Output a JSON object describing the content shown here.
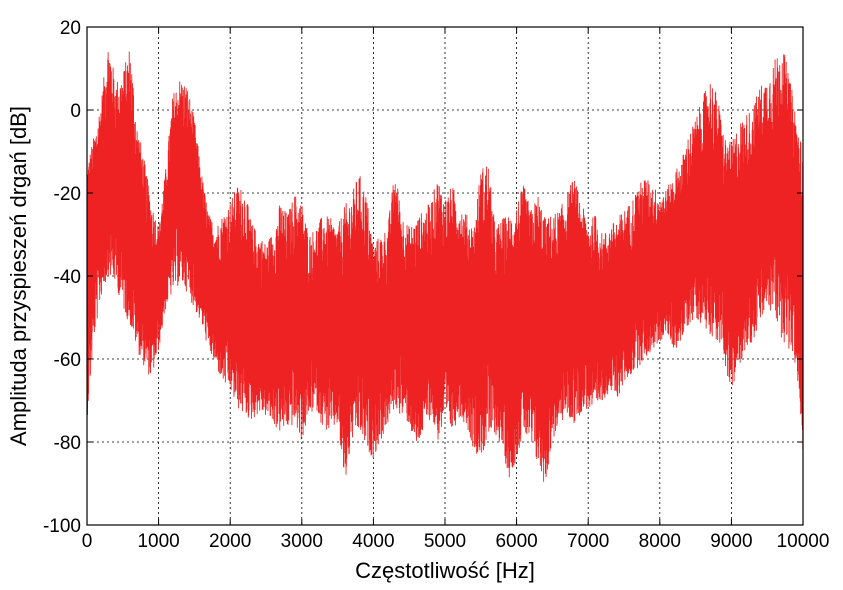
{
  "chart_data": {
    "type": "line",
    "title": "",
    "xlabel": "Częstotliwość [Hz]",
    "ylabel": "Amplituda przyspieszeń drgań [dB]",
    "xlim": [
      0,
      10000
    ],
    "ylim": [
      -100,
      20
    ],
    "xticks": [
      0,
      1000,
      2000,
      3000,
      4000,
      5000,
      6000,
      7000,
      8000,
      9000,
      10000
    ],
    "yticks": [
      -100,
      -80,
      -60,
      -40,
      -20,
      0,
      20
    ],
    "xtick_labels": [
      "0",
      "1000",
      "2000",
      "3000",
      "4000",
      "5000",
      "6000",
      "7000",
      "8000",
      "9000",
      "10000"
    ],
    "ytick_labels": [
      "-100",
      "-80",
      "-60",
      "-40",
      "-20",
      "0",
      "20"
    ],
    "grid": true,
    "series": [
      {
        "color": "#ee2222",
        "envelope_x": [
          0,
          100,
          200,
          300,
          400,
          500,
          600,
          700,
          800,
          900,
          1000,
          1100,
          1200,
          1300,
          1400,
          1500,
          1600,
          1700,
          1800,
          1900,
          2000,
          2100,
          2200,
          2300,
          2400,
          2500,
          2600,
          2700,
          2800,
          2900,
          3000,
          3100,
          3200,
          3300,
          3400,
          3500,
          3600,
          3700,
          3800,
          3900,
          4000,
          4100,
          4200,
          4300,
          4400,
          4500,
          4600,
          4700,
          4800,
          4900,
          5000,
          5100,
          5200,
          5300,
          5400,
          5500,
          5600,
          5700,
          5800,
          5900,
          6000,
          6100,
          6200,
          6300,
          6400,
          6500,
          6600,
          6700,
          6800,
          6900,
          7000,
          7100,
          7200,
          7300,
          7400,
          7500,
          7600,
          7700,
          7800,
          7900,
          8000,
          8100,
          8200,
          8300,
          8400,
          8500,
          8600,
          8700,
          8800,
          8900,
          9000,
          9100,
          9200,
          9300,
          9400,
          9500,
          9600,
          9700,
          9800,
          9900,
          10000
        ],
        "envelope_upper": [
          -12,
          -6,
          3,
          17,
          7,
          9,
          16,
          -3,
          -12,
          -22,
          -28,
          -14,
          4,
          8,
          6,
          -2,
          -15,
          -25,
          -28,
          -25,
          -22,
          -18,
          -19,
          -27,
          -30,
          -32,
          -29,
          -22,
          -25,
          -20,
          -22,
          -30,
          -28,
          -25,
          -26,
          -28,
          -23,
          -20,
          -15,
          -20,
          -32,
          -30,
          -28,
          -14,
          -25,
          -28,
          -26,
          -24,
          -22,
          -16,
          -21,
          -18,
          -22,
          -25,
          -28,
          -14,
          -12,
          -28,
          -26,
          -25,
          -22,
          -18,
          -24,
          -20,
          -26,
          -25,
          -24,
          -20,
          -16,
          -22,
          -27,
          -25,
          -30,
          -28,
          -26,
          -24,
          -22,
          -18,
          -16,
          -18,
          -20,
          -19,
          -15,
          -12,
          -6,
          -2,
          3,
          8,
          4,
          -6,
          -8,
          -3,
          -1,
          1,
          6,
          8,
          12,
          17,
          9,
          0,
          -10
        ],
        "envelope_lower": [
          -75,
          -55,
          -45,
          -40,
          -42,
          -48,
          -52,
          -58,
          -62,
          -65,
          -58,
          -48,
          -44,
          -42,
          -44,
          -48,
          -52,
          -58,
          -62,
          -66,
          -68,
          -72,
          -74,
          -75,
          -73,
          -74,
          -76,
          -78,
          -77,
          -76,
          -80,
          -74,
          -72,
          -77,
          -78,
          -76,
          -91,
          -80,
          -78,
          -82,
          -84,
          -80,
          -76,
          -72,
          -74,
          -76,
          -82,
          -78,
          -74,
          -80,
          -76,
          -78,
          -74,
          -76,
          -82,
          -84,
          -80,
          -78,
          -82,
          -89,
          -84,
          -78,
          -82,
          -86,
          -91,
          -80,
          -76,
          -74,
          -76,
          -73,
          -72,
          -74,
          -70,
          -68,
          -70,
          -66,
          -64,
          -62,
          -60,
          -58,
          -56,
          -54,
          -58,
          -56,
          -52,
          -50,
          -52,
          -54,
          -56,
          -60,
          -70,
          -62,
          -58,
          -56,
          -52,
          -48,
          -50,
          -55,
          -58,
          -62,
          -83
        ]
      }
    ]
  }
}
